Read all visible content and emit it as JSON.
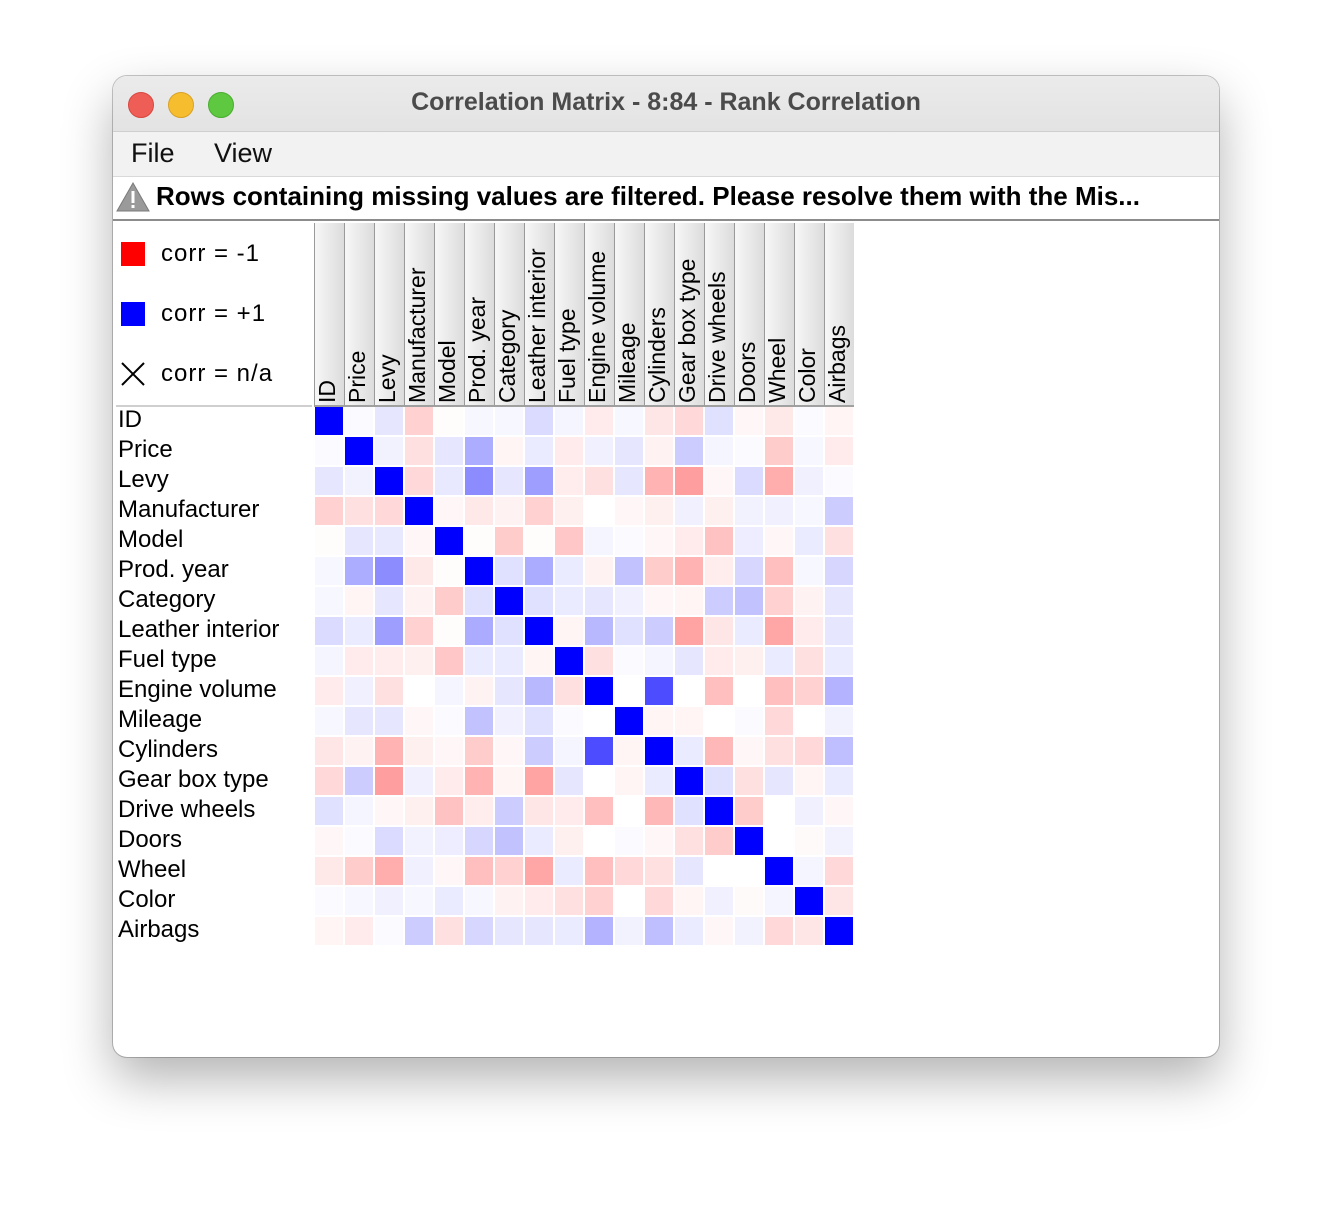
{
  "window": {
    "title": "Correlation Matrix - 8:84 - Rank Correlation"
  },
  "menu": [
    {
      "label": "File"
    },
    {
      "label": "View"
    }
  ],
  "warning": {
    "icon": "warning-triangle-icon",
    "text": "Rows containing missing values are filtered. Please resolve them with the Mis..."
  },
  "legend": {
    "items": [
      {
        "label": "corr = -1",
        "color": "#ff0000",
        "icon": "red-square"
      },
      {
        "label": "corr = +1",
        "color": "#0000ff",
        "icon": "blue-square"
      },
      {
        "label": "corr = n/a",
        "icon": "cross-icon"
      }
    ]
  },
  "colors": {
    "positive": "#0000ff",
    "negative": "#ff0000"
  },
  "matrix": {
    "variables": [
      "ID",
      "Price",
      "Levy",
      "Manufacturer",
      "Model",
      "Prod. year",
      "Category",
      "Leather interior",
      "Fuel type",
      "Engine volume",
      "Mileage",
      "Cylinders",
      "Gear box type",
      "Drive wheels",
      "Doors",
      "Wheel",
      "Color",
      "Airbags"
    ],
    "values": [
      [
        1.0,
        0.02,
        0.1,
        -0.18,
        -0.01,
        0.03,
        0.03,
        0.14,
        0.04,
        -0.08,
        0.03,
        -0.1,
        -0.15,
        0.12,
        -0.03,
        -0.09,
        0.02,
        -0.04
      ],
      [
        0.02,
        1.0,
        0.05,
        -0.12,
        0.1,
        0.32,
        -0.04,
        0.08,
        -0.08,
        0.06,
        0.1,
        -0.05,
        0.2,
        0.04,
        0.02,
        -0.2,
        0.03,
        -0.08
      ],
      [
        0.1,
        0.05,
        1.0,
        -0.15,
        0.09,
        0.45,
        0.1,
        0.38,
        -0.07,
        -0.12,
        0.1,
        -0.3,
        -0.38,
        -0.03,
        0.14,
        -0.32,
        0.06,
        0.02
      ],
      [
        -0.18,
        -0.12,
        -0.15,
        1.0,
        -0.03,
        -0.09,
        -0.05,
        -0.18,
        -0.06,
        0.0,
        -0.03,
        -0.06,
        0.06,
        -0.06,
        0.05,
        0.06,
        0.03,
        0.2
      ],
      [
        -0.01,
        0.1,
        0.09,
        -0.03,
        1.0,
        -0.01,
        -0.2,
        -0.01,
        -0.22,
        0.04,
        0.02,
        -0.03,
        -0.08,
        -0.24,
        0.07,
        -0.03,
        0.08,
        -0.12
      ],
      [
        0.03,
        0.32,
        0.45,
        -0.09,
        -0.01,
        1.0,
        0.12,
        0.33,
        0.08,
        -0.05,
        0.24,
        -0.2,
        -0.3,
        -0.07,
        0.16,
        -0.25,
        0.03,
        0.16
      ],
      [
        0.03,
        -0.04,
        0.1,
        -0.05,
        -0.2,
        0.12,
        1.0,
        0.12,
        0.08,
        0.1,
        0.06,
        -0.03,
        -0.04,
        0.2,
        0.24,
        -0.18,
        -0.05,
        0.1
      ],
      [
        0.14,
        0.08,
        0.38,
        -0.18,
        -0.01,
        0.33,
        0.12,
        1.0,
        -0.04,
        0.28,
        0.12,
        0.2,
        -0.36,
        -0.1,
        0.08,
        -0.35,
        -0.08,
        0.1
      ],
      [
        0.04,
        -0.08,
        -0.07,
        -0.06,
        -0.22,
        0.08,
        0.08,
        -0.04,
        1.0,
        -0.12,
        0.02,
        0.04,
        0.1,
        -0.08,
        -0.06,
        0.08,
        -0.12,
        0.08
      ],
      [
        -0.08,
        0.06,
        -0.12,
        0.0,
        0.04,
        -0.05,
        0.1,
        0.28,
        -0.12,
        1.0,
        0.0,
        0.7,
        0.0,
        -0.25,
        0.0,
        -0.25,
        -0.18,
        0.3
      ],
      [
        0.03,
        0.1,
        0.1,
        -0.03,
        0.02,
        0.24,
        0.06,
        0.12,
        0.02,
        0.0,
        1.0,
        -0.04,
        -0.04,
        0.0,
        0.02,
        -0.15,
        0.0,
        0.05
      ],
      [
        -0.1,
        -0.05,
        -0.3,
        -0.06,
        -0.03,
        -0.2,
        -0.03,
        0.2,
        0.04,
        0.7,
        -0.04,
        1.0,
        0.08,
        -0.28,
        -0.03,
        -0.12,
        -0.15,
        0.25
      ],
      [
        -0.15,
        0.2,
        -0.38,
        0.06,
        -0.08,
        -0.3,
        -0.04,
        -0.36,
        0.1,
        0.0,
        -0.04,
        0.08,
        1.0,
        0.12,
        -0.12,
        0.1,
        -0.04,
        0.08
      ],
      [
        0.12,
        0.04,
        -0.03,
        -0.06,
        -0.24,
        -0.07,
        0.2,
        -0.1,
        -0.08,
        -0.25,
        0.0,
        -0.28,
        0.12,
        1.0,
        -0.2,
        0.0,
        0.06,
        -0.03
      ],
      [
        -0.03,
        0.02,
        0.14,
        0.05,
        0.07,
        0.16,
        0.24,
        0.08,
        -0.06,
        0.0,
        0.02,
        -0.03,
        -0.12,
        -0.2,
        1.0,
        0.0,
        -0.02,
        0.05
      ],
      [
        -0.09,
        -0.2,
        -0.32,
        0.06,
        -0.03,
        -0.25,
        -0.18,
        -0.35,
        0.08,
        -0.25,
        -0.15,
        -0.12,
        0.1,
        0.0,
        0.0,
        1.0,
        0.04,
        -0.15
      ],
      [
        0.02,
        0.03,
        0.06,
        0.03,
        0.08,
        0.03,
        -0.05,
        -0.08,
        -0.12,
        -0.18,
        0.0,
        -0.15,
        -0.04,
        0.06,
        -0.02,
        0.04,
        1.0,
        -0.1
      ],
      [
        -0.04,
        -0.08,
        0.02,
        0.2,
        -0.12,
        0.16,
        0.1,
        0.1,
        0.08,
        0.3,
        0.05,
        0.25,
        0.08,
        -0.03,
        0.05,
        -0.15,
        -0.1,
        1.0
      ]
    ]
  }
}
